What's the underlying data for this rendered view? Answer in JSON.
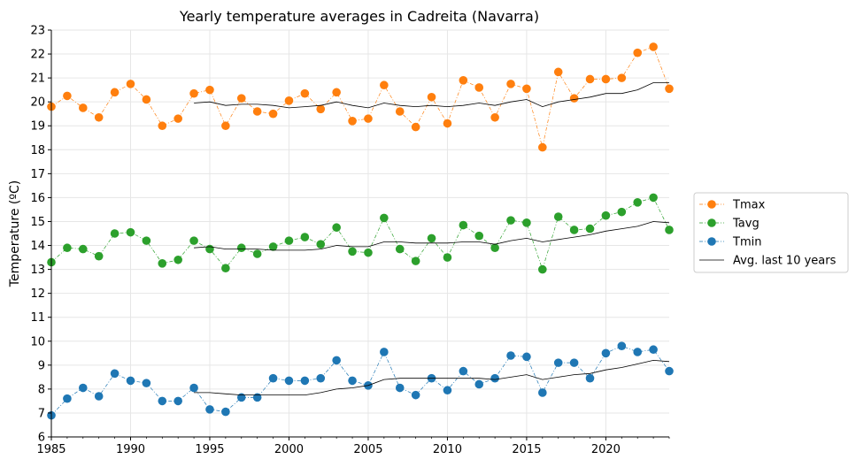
{
  "chart_data": {
    "type": "line",
    "title": "Yearly temperature averages in Cadreita (Navarra)",
    "xlabel": "",
    "ylabel": "Temperature (ºC)",
    "xlim": [
      1985,
      2024
    ],
    "ylim": [
      6,
      23
    ],
    "x_ticks": [
      1985,
      1990,
      1995,
      2000,
      2005,
      2010,
      2015,
      2020
    ],
    "y_ticks": [
      6,
      7,
      8,
      9,
      10,
      11,
      12,
      13,
      14,
      15,
      16,
      17,
      18,
      19,
      20,
      21,
      22,
      23
    ],
    "grid": true,
    "legend_position": "outside-right",
    "colors": {
      "tmax": "#ff7f0e",
      "tavg": "#2ca02c",
      "tmin": "#1f77b4",
      "avg10": "#000000"
    },
    "x": [
      1985,
      1986,
      1987,
      1988,
      1989,
      1990,
      1991,
      1992,
      1993,
      1994,
      1995,
      1996,
      1997,
      1998,
      1999,
      2000,
      2001,
      2002,
      2003,
      2004,
      2005,
      2006,
      2007,
      2008,
      2009,
      2010,
      2011,
      2012,
      2013,
      2014,
      2015,
      2016,
      2017,
      2018,
      2019,
      2020,
      2021,
      2022,
      2023,
      2024
    ],
    "series": [
      {
        "name": "Tmax",
        "style": "dashdot-marker",
        "color": "#ff7f0e",
        "values": [
          19.8,
          20.25,
          19.75,
          19.35,
          20.4,
          20.75,
          20.1,
          19.0,
          19.3,
          20.35,
          20.5,
          19.0,
          20.15,
          19.6,
          19.5,
          20.05,
          20.35,
          19.7,
          20.4,
          19.2,
          19.3,
          20.7,
          19.6,
          18.95,
          20.2,
          19.1,
          20.9,
          20.6,
          19.35,
          20.75,
          20.55,
          18.1,
          21.25,
          20.15,
          20.95,
          20.95,
          21.0,
          22.05,
          22.3,
          20.55
        ]
      },
      {
        "name": "Tavg",
        "style": "dashdot-marker",
        "color": "#2ca02c",
        "values": [
          13.3,
          13.9,
          13.85,
          13.55,
          14.5,
          14.55,
          14.2,
          13.25,
          13.4,
          14.2,
          13.85,
          13.05,
          13.9,
          13.65,
          13.95,
          14.2,
          14.35,
          14.05,
          14.75,
          13.75,
          13.7,
          15.15,
          13.85,
          13.35,
          14.3,
          13.5,
          14.85,
          14.4,
          13.9,
          15.05,
          14.95,
          13.0,
          15.2,
          14.65,
          14.7,
          15.25,
          15.4,
          15.8,
          16.0,
          14.65
        ]
      },
      {
        "name": "Tmin",
        "style": "dashdot-marker",
        "color": "#1f77b4",
        "values": [
          6.9,
          7.6,
          8.05,
          7.7,
          8.65,
          8.35,
          8.25,
          7.5,
          7.5,
          8.05,
          7.15,
          7.05,
          7.65,
          7.65,
          8.45,
          8.35,
          8.35,
          8.45,
          9.2,
          8.35,
          8.15,
          9.55,
          8.05,
          7.75,
          8.45,
          7.95,
          8.75,
          8.2,
          8.45,
          9.4,
          9.35,
          7.85,
          9.1,
          9.1,
          8.45,
          9.5,
          9.8,
          9.55,
          9.65,
          8.75
        ]
      },
      {
        "name": "Avg. last 10 years",
        "style": "solid-thin",
        "color": "#000000",
        "groups": [
          {
            "x": [
              1994,
              1995,
              1996,
              1997,
              1998,
              1999,
              2000,
              2001,
              2002,
              2003,
              2004,
              2005,
              2006,
              2007,
              2008,
              2009,
              2010,
              2011,
              2012,
              2013,
              2014,
              2015,
              2016,
              2017,
              2018,
              2019,
              2020,
              2021,
              2022,
              2023,
              2024
            ],
            "values": [
              19.95,
              20.0,
              19.85,
              19.9,
              19.9,
              19.85,
              19.75,
              19.8,
              19.85,
              20.0,
              19.85,
              19.75,
              19.95,
              19.85,
              19.8,
              19.85,
              19.8,
              19.85,
              19.95,
              19.85,
              20.0,
              20.1,
              19.8,
              20.0,
              20.1,
              20.2,
              20.35,
              20.35,
              20.5,
              20.8,
              20.8
            ]
          },
          {
            "x": [
              1994,
              1995,
              1996,
              1997,
              1998,
              1999,
              2000,
              2001,
              2002,
              2003,
              2004,
              2005,
              2006,
              2007,
              2008,
              2009,
              2010,
              2011,
              2012,
              2013,
              2014,
              2015,
              2016,
              2017,
              2018,
              2019,
              2020,
              2021,
              2022,
              2023,
              2024
            ],
            "values": [
              13.9,
              13.95,
              13.85,
              13.85,
              13.85,
              13.8,
              13.8,
              13.8,
              13.85,
              14.0,
              13.95,
              13.95,
              14.15,
              14.15,
              14.1,
              14.1,
              14.1,
              14.15,
              14.15,
              14.05,
              14.2,
              14.3,
              14.15,
              14.25,
              14.35,
              14.45,
              14.6,
              14.7,
              14.8,
              15.0,
              14.95
            ]
          },
          {
            "x": [
              1994,
              1995,
              1996,
              1997,
              1998,
              1999,
              2000,
              2001,
              2002,
              2003,
              2004,
              2005,
              2006,
              2007,
              2008,
              2009,
              2010,
              2011,
              2012,
              2013,
              2014,
              2015,
              2016,
              2017,
              2018,
              2019,
              2020,
              2021,
              2022,
              2023,
              2024
            ],
            "values": [
              7.85,
              7.85,
              7.8,
              7.75,
              7.75,
              7.75,
              7.75,
              7.75,
              7.85,
              8.0,
              8.05,
              8.15,
              8.4,
              8.45,
              8.45,
              8.45,
              8.45,
              8.45,
              8.45,
              8.4,
              8.5,
              8.6,
              8.4,
              8.5,
              8.6,
              8.65,
              8.8,
              8.9,
              9.05,
              9.2,
              9.15
            ]
          }
        ]
      }
    ]
  }
}
